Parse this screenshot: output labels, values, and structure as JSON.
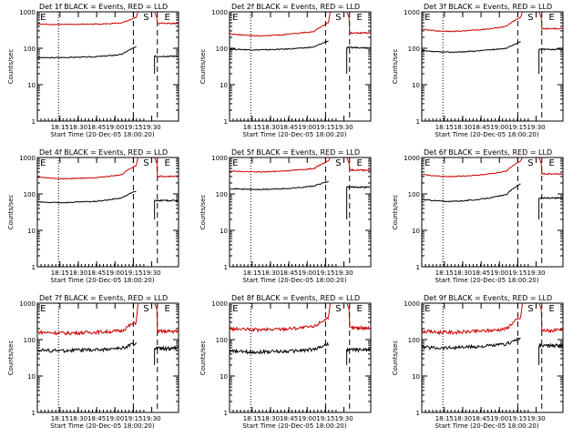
{
  "chart_data": [
    {
      "type": "line",
      "title": "Det 1f BLACK = Events, RED = LLD",
      "xlabel": "Start Time (20-Dec-05 18:00:20)",
      "ylabel": "Counts/sec",
      "yscale": "log",
      "ylim": [
        1,
        1000
      ],
      "y_ticks": [
        "1",
        "10",
        "100",
        "1000"
      ],
      "x_ticks": [
        "18:15",
        "18:30",
        "18:45",
        "19:00",
        "19:15",
        "19:30"
      ],
      "markers": [
        "E",
        "S",
        "E"
      ],
      "series": [
        {
          "name": "Events",
          "color": "#000000",
          "values": [
            55,
            55,
            56,
            57,
            58,
            62,
            68,
            110
          ]
        },
        {
          "name": "LLD",
          "color": "#cc0000",
          "values": [
            460,
            450,
            450,
            455,
            460,
            470,
            490,
            700
          ]
        }
      ]
    },
    {
      "type": "line",
      "title": "Det 2f BLACK = Events, RED = LLD",
      "xlabel": "Start Time (20-Dec-05 18:00:20)",
      "ylabel": "Counts/sec",
      "yscale": "log",
      "ylim": [
        1,
        1000
      ],
      "y_ticks": [
        "1",
        "10",
        "100",
        "1000"
      ],
      "x_ticks": [
        "18:15",
        "18:30",
        "18:45",
        "19:00",
        "19:15",
        "19:30"
      ],
      "markers": [
        "E",
        "S",
        "E"
      ],
      "series": [
        {
          "name": "Events",
          "color": "#000000",
          "values": [
            95,
            92,
            90,
            92,
            95,
            100,
            108,
            160
          ]
        },
        {
          "name": "LLD",
          "color": "#cc0000",
          "values": [
            250,
            230,
            220,
            225,
            240,
            260,
            290,
            500
          ]
        }
      ]
    },
    {
      "type": "line",
      "title": "Det 3f BLACK = Events, RED = LLD",
      "xlabel": "Start Time (20-Dec-05 18:00:20)",
      "ylabel": "Counts/sec",
      "yscale": "log",
      "ylim": [
        1,
        1000
      ],
      "y_ticks": [
        "1",
        "10",
        "100",
        "1000"
      ],
      "x_ticks": [
        "18:15",
        "18:30",
        "18:45",
        "19:00",
        "19:15",
        "19:30"
      ],
      "markers": [
        "E",
        "S",
        "E"
      ],
      "series": [
        {
          "name": "Events",
          "color": "#000000",
          "values": [
            85,
            80,
            78,
            80,
            85,
            92,
            100,
            150
          ]
        },
        {
          "name": "LLD",
          "color": "#cc0000",
          "values": [
            330,
            300,
            290,
            300,
            320,
            350,
            400,
            700
          ]
        }
      ]
    },
    {
      "type": "line",
      "title": "Det 4f BLACK = Events, RED = LLD",
      "xlabel": "Start Time (20-Dec-05 18:00:20)",
      "ylabel": "Counts/sec",
      "yscale": "log",
      "ylim": [
        1,
        1000
      ],
      "y_ticks": [
        "1",
        "10",
        "100",
        "1000"
      ],
      "x_ticks": [
        "18:15",
        "18:30",
        "18:45",
        "19:00",
        "19:15",
        "19:30"
      ],
      "markers": [
        "E",
        "S",
        "E"
      ],
      "series": [
        {
          "name": "Events",
          "color": "#000000",
          "values": [
            60,
            58,
            58,
            60,
            62,
            68,
            78,
            120
          ]
        },
        {
          "name": "LLD",
          "color": "#cc0000",
          "values": [
            290,
            270,
            260,
            270,
            280,
            300,
            340,
            600
          ]
        }
      ]
    },
    {
      "type": "line",
      "title": "Det 5f BLACK = Events, RED = LLD",
      "xlabel": "Start Time (20-Dec-05 18:00:20)",
      "ylabel": "Counts/sec",
      "yscale": "log",
      "ylim": [
        1,
        1000
      ],
      "y_ticks": [
        "1",
        "10",
        "100",
        "1000"
      ],
      "x_ticks": [
        "18:15",
        "18:30",
        "18:45",
        "19:00",
        "19:15",
        "19:30"
      ],
      "markers": [
        "E",
        "S",
        "E"
      ],
      "series": [
        {
          "name": "Events",
          "color": "#000000",
          "values": [
            140,
            135,
            132,
            135,
            140,
            150,
            165,
            220
          ]
        },
        {
          "name": "LLD",
          "color": "#cc0000",
          "values": [
            430,
            410,
            400,
            410,
            430,
            460,
            500,
            800
          ]
        }
      ]
    },
    {
      "type": "line",
      "title": "Det 6f BLACK = Events, RED = LLD",
      "xlabel": "Start Time (20-Dec-05 18:00:20)",
      "ylabel": "Counts/sec",
      "yscale": "log",
      "ylim": [
        1,
        1000
      ],
      "y_ticks": [
        "1",
        "10",
        "100",
        "1000"
      ],
      "x_ticks": [
        "18:15",
        "18:30",
        "18:45",
        "19:00",
        "19:15",
        "19:30"
      ],
      "markers": [
        "E",
        "S",
        "E"
      ],
      "series": [
        {
          "name": "Events",
          "color": "#000000",
          "values": [
            70,
            65,
            62,
            65,
            70,
            80,
            95,
            190
          ]
        },
        {
          "name": "LLD",
          "color": "#cc0000",
          "values": [
            340,
            310,
            300,
            310,
            330,
            360,
            420,
            800
          ]
        }
      ]
    },
    {
      "type": "line",
      "title": "Det 7f BLACK = Events, RED = LLD",
      "xlabel": "Start Time (20-Dec-05 18:00:20)",
      "ylabel": "Counts/sec",
      "yscale": "log",
      "ylim": [
        1,
        1000
      ],
      "y_ticks": [
        "1",
        "10",
        "100",
        "1000"
      ],
      "x_ticks": [
        "18:15",
        "18:30",
        "18:45",
        "19:00",
        "19:15",
        "19:30"
      ],
      "markers": [
        "E",
        "S",
        "E"
      ],
      "series": [
        {
          "name": "Events",
          "color": "#000000",
          "values": [
            52,
            50,
            50,
            52,
            52,
            55,
            58,
            80
          ]
        },
        {
          "name": "LLD",
          "color": "#cc0000",
          "values": [
            160,
            155,
            150,
            155,
            160,
            165,
            175,
            300
          ]
        }
      ]
    },
    {
      "type": "line",
      "title": "Det 8f BLACK = Events, RED = LLD",
      "xlabel": "Start Time (20-Dec-05 18:00:20)",
      "ylabel": "Counts/sec",
      "yscale": "log",
      "ylim": [
        1,
        1000
      ],
      "y_ticks": [
        "1",
        "10",
        "100",
        "1000"
      ],
      "x_ticks": [
        "18:15",
        "18:30",
        "18:45",
        "19:00",
        "19:15",
        "19:30"
      ],
      "markers": [
        "E",
        "S",
        "E"
      ],
      "series": [
        {
          "name": "Events",
          "color": "#000000",
          "values": [
            48,
            46,
            46,
            47,
            48,
            50,
            54,
            75
          ]
        },
        {
          "name": "LLD",
          "color": "#cc0000",
          "values": [
            200,
            190,
            185,
            190,
            200,
            210,
            225,
            400
          ]
        }
      ]
    },
    {
      "type": "line",
      "title": "Det 9f BLACK = Events, RED = LLD",
      "xlabel": "Start Time (20-Dec-05 18:00:20)",
      "ylabel": "Counts/sec",
      "yscale": "log",
      "ylim": [
        1,
        1000
      ],
      "y_ticks": [
        "1",
        "10",
        "100",
        "1000"
      ],
      "x_ticks": [
        "18:15",
        "18:30",
        "18:45",
        "19:00",
        "19:15",
        "19:30"
      ],
      "markers": [
        "E",
        "S",
        "E"
      ],
      "series": [
        {
          "name": "Events",
          "color": "#000000",
          "values": [
            62,
            60,
            60,
            62,
            64,
            68,
            75,
            110
          ]
        },
        {
          "name": "LLD",
          "color": "#cc0000",
          "values": [
            170,
            160,
            158,
            162,
            170,
            180,
            200,
            400
          ]
        }
      ]
    }
  ]
}
